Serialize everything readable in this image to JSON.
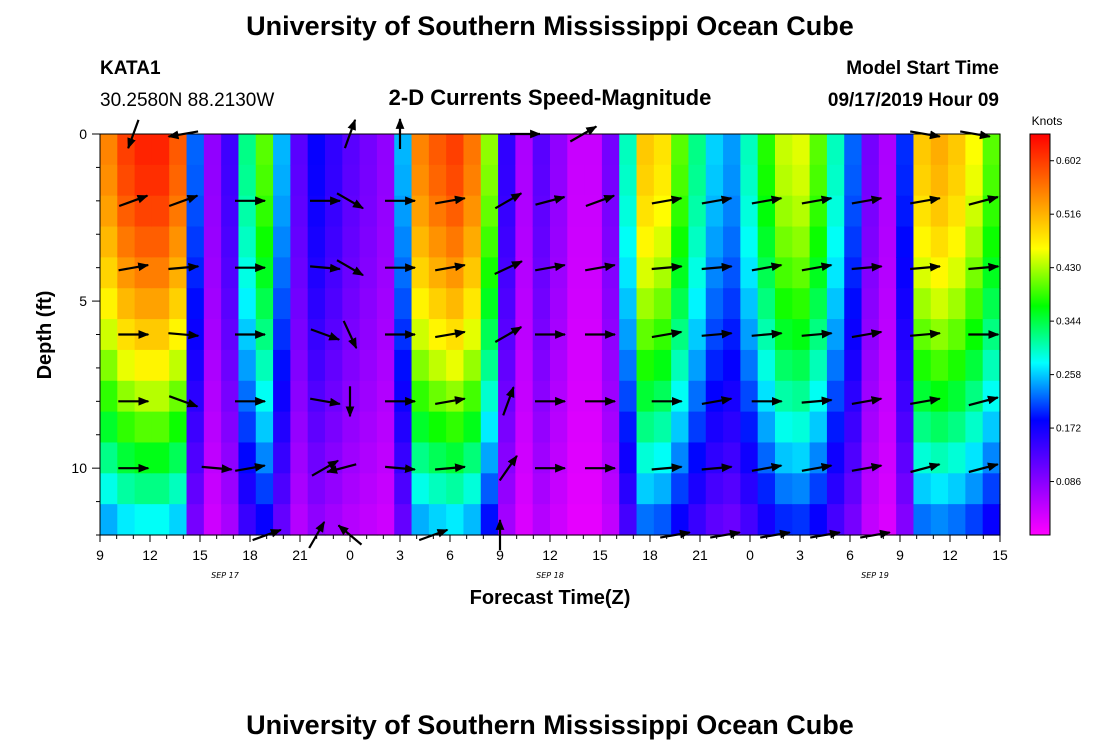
{
  "header": {
    "title": "University of Southern Mississippi Ocean Cube",
    "station": "KATA1",
    "coords": "30.2580N 88.2130W",
    "subtitle": "2-D Currents Speed-Magnitude",
    "model_start_label": "Model Start Time",
    "model_start_value": "09/17/2019 Hour 09"
  },
  "footer": {
    "title": "University of Southern Mississippi Ocean Cube"
  },
  "chart_data": {
    "type": "heatmap",
    "title": "2-D Currents Speed-Magnitude",
    "xlabel": "Forecast Time(Z)",
    "ylabel": "Depth (ft)",
    "x_range_hours": [
      0,
      54
    ],
    "x_ticks": [
      {
        "h": 0,
        "label": "9"
      },
      {
        "h": 3,
        "label": "12"
      },
      {
        "h": 6,
        "label": "15"
      },
      {
        "h": 9,
        "label": "18"
      },
      {
        "h": 12,
        "label": "21"
      },
      {
        "h": 15,
        "label": "0"
      },
      {
        "h": 18,
        "label": "3"
      },
      {
        "h": 21,
        "label": "6"
      },
      {
        "h": 24,
        "label": "9"
      },
      {
        "h": 27,
        "label": "12"
      },
      {
        "h": 30,
        "label": "15"
      },
      {
        "h": 33,
        "label": "18"
      },
      {
        "h": 36,
        "label": "21"
      },
      {
        "h": 39,
        "label": "0"
      },
      {
        "h": 42,
        "label": "3"
      },
      {
        "h": 45,
        "label": "6"
      },
      {
        "h": 48,
        "label": "9"
      },
      {
        "h": 51,
        "label": "12"
      },
      {
        "h": 54,
        "label": "15"
      }
    ],
    "date_labels": [
      {
        "h": 7.5,
        "label": "SEP 17"
      },
      {
        "h": 27,
        "label": "SEP 18"
      },
      {
        "h": 46.5,
        "label": "SEP 19"
      }
    ],
    "y_range_ft": [
      0,
      12
    ],
    "y_ticks": [
      0,
      5,
      10
    ],
    "colorbar": {
      "unit": "Knots",
      "range": [
        0.0,
        0.645
      ],
      "labels": [
        "0.602",
        "0.516",
        "0.430",
        "0.344",
        "0.258",
        "0.172",
        "0.086"
      ],
      "label_values": [
        0.602,
        0.516,
        0.43,
        0.344,
        0.258,
        0.172,
        0.086
      ],
      "colors": [
        "#ff00ff",
        "#8000ff",
        "#0000ff",
        "#00ffff",
        "#00ff00",
        "#ffff00",
        "#ff8000",
        "#ff0000"
      ]
    },
    "depths_ft": [
      0,
      1,
      2,
      3,
      4,
      5,
      6,
      7,
      8,
      9,
      10,
      11,
      12
    ],
    "column_peak_speed": [
      0.55,
      0.6,
      0.62,
      0.62,
      0.58,
      0.22,
      0.08,
      0.14,
      0.32,
      0.4,
      0.25,
      0.12,
      0.18,
      0.15,
      0.12,
      0.1,
      0.08,
      0.25,
      0.55,
      0.58,
      0.6,
      0.56,
      0.42,
      0.15,
      0.06,
      0.12,
      0.08,
      0.04,
      0.04,
      0.1,
      0.3,
      0.5,
      0.48,
      0.4,
      0.32,
      0.26,
      0.24,
      0.3,
      0.38,
      0.44,
      0.45,
      0.4,
      0.3,
      0.22,
      0.1,
      0.06,
      0.2,
      0.5,
      0.52,
      0.5,
      0.46,
      0.4
    ],
    "vectors": [
      {
        "h": 2,
        "d": 0,
        "dir": 200
      },
      {
        "h": 5,
        "d": 0,
        "dir": 260
      },
      {
        "h": 15,
        "d": 0,
        "dir": 20
      },
      {
        "h": 18,
        "d": 0,
        "dir": 0
      },
      {
        "h": 25.5,
        "d": 0,
        "dir": 90
      },
      {
        "h": 29,
        "d": 0,
        "dir": 60
      },
      {
        "h": 49.5,
        "d": 0,
        "dir": 100
      },
      {
        "h": 52.5,
        "d": 0,
        "dir": 100
      },
      {
        "h": 2,
        "d": 2,
        "dir": 70
      },
      {
        "h": 5,
        "d": 2,
        "dir": 70
      },
      {
        "h": 9,
        "d": 2,
        "dir": 90
      },
      {
        "h": 13.5,
        "d": 2,
        "dir": 90
      },
      {
        "h": 15,
        "d": 2,
        "dir": 120
      },
      {
        "h": 18,
        "d": 2,
        "dir": 90
      },
      {
        "h": 21,
        "d": 2,
        "dir": 80
      },
      {
        "h": 24.5,
        "d": 2,
        "dir": 60
      },
      {
        "h": 27,
        "d": 2,
        "dir": 75
      },
      {
        "h": 30,
        "d": 2,
        "dir": 70
      },
      {
        "h": 34,
        "d": 2,
        "dir": 80
      },
      {
        "h": 37,
        "d": 2,
        "dir": 80
      },
      {
        "h": 40,
        "d": 2,
        "dir": 80
      },
      {
        "h": 43,
        "d": 2,
        "dir": 80
      },
      {
        "h": 46,
        "d": 2,
        "dir": 80
      },
      {
        "h": 49.5,
        "d": 2,
        "dir": 80
      },
      {
        "h": 53,
        "d": 2,
        "dir": 75
      },
      {
        "h": 2,
        "d": 4,
        "dir": 80
      },
      {
        "h": 5,
        "d": 4,
        "dir": 85
      },
      {
        "h": 9,
        "d": 4,
        "dir": 90
      },
      {
        "h": 13.5,
        "d": 4,
        "dir": 95
      },
      {
        "h": 15,
        "d": 4,
        "dir": 120
      },
      {
        "h": 18,
        "d": 4,
        "dir": 90
      },
      {
        "h": 21,
        "d": 4,
        "dir": 80
      },
      {
        "h": 24.5,
        "d": 4,
        "dir": 65
      },
      {
        "h": 27,
        "d": 4,
        "dir": 80
      },
      {
        "h": 30,
        "d": 4,
        "dir": 80
      },
      {
        "h": 34,
        "d": 4,
        "dir": 85
      },
      {
        "h": 37,
        "d": 4,
        "dir": 85
      },
      {
        "h": 40,
        "d": 4,
        "dir": 80
      },
      {
        "h": 43,
        "d": 4,
        "dir": 80
      },
      {
        "h": 46,
        "d": 4,
        "dir": 85
      },
      {
        "h": 49.5,
        "d": 4,
        "dir": 85
      },
      {
        "h": 53,
        "d": 4,
        "dir": 85
      },
      {
        "h": 2,
        "d": 6,
        "dir": 90
      },
      {
        "h": 5,
        "d": 6,
        "dir": 95
      },
      {
        "h": 9,
        "d": 6,
        "dir": 90
      },
      {
        "h": 13.5,
        "d": 6,
        "dir": 110
      },
      {
        "h": 15,
        "d": 6,
        "dir": 155
      },
      {
        "h": 18,
        "d": 6,
        "dir": 90
      },
      {
        "h": 21,
        "d": 6,
        "dir": 80
      },
      {
        "h": 24.5,
        "d": 6,
        "dir": 60
      },
      {
        "h": 27,
        "d": 6,
        "dir": 90
      },
      {
        "h": 30,
        "d": 6,
        "dir": 90
      },
      {
        "h": 34,
        "d": 6,
        "dir": 80
      },
      {
        "h": 37,
        "d": 6,
        "dir": 85
      },
      {
        "h": 40,
        "d": 6,
        "dir": 85
      },
      {
        "h": 43,
        "d": 6,
        "dir": 85
      },
      {
        "h": 46,
        "d": 6,
        "dir": 80
      },
      {
        "h": 49.5,
        "d": 6,
        "dir": 85
      },
      {
        "h": 53,
        "d": 6,
        "dir": 90
      },
      {
        "h": 2,
        "d": 8,
        "dir": 90
      },
      {
        "h": 5,
        "d": 8,
        "dir": 110
      },
      {
        "h": 9,
        "d": 8,
        "dir": 90
      },
      {
        "h": 13.5,
        "d": 8,
        "dir": 100
      },
      {
        "h": 15,
        "d": 8,
        "dir": 180
      },
      {
        "h": 18,
        "d": 8,
        "dir": 90
      },
      {
        "h": 21,
        "d": 8,
        "dir": 80
      },
      {
        "h": 24.5,
        "d": 8,
        "dir": 20
      },
      {
        "h": 27,
        "d": 8,
        "dir": 90
      },
      {
        "h": 30,
        "d": 8,
        "dir": 90
      },
      {
        "h": 34,
        "d": 8,
        "dir": 90
      },
      {
        "h": 37,
        "d": 8,
        "dir": 80
      },
      {
        "h": 40,
        "d": 8,
        "dir": 90
      },
      {
        "h": 43,
        "d": 8,
        "dir": 85
      },
      {
        "h": 46,
        "d": 8,
        "dir": 80
      },
      {
        "h": 49.5,
        "d": 8,
        "dir": 80
      },
      {
        "h": 53,
        "d": 8,
        "dir": 75
      },
      {
        "h": 2,
        "d": 10,
        "dir": 90
      },
      {
        "h": 7,
        "d": 10,
        "dir": 95
      },
      {
        "h": 9,
        "d": 10,
        "dir": 80
      },
      {
        "h": 13.5,
        "d": 10,
        "dir": 60
      },
      {
        "h": 14.5,
        "d": 10,
        "dir": 255
      },
      {
        "h": 18,
        "d": 10,
        "dir": 95
      },
      {
        "h": 21,
        "d": 10,
        "dir": 85
      },
      {
        "h": 24.5,
        "d": 10,
        "dir": 35
      },
      {
        "h": 27,
        "d": 10,
        "dir": 90
      },
      {
        "h": 30,
        "d": 10,
        "dir": 90
      },
      {
        "h": 34,
        "d": 10,
        "dir": 85
      },
      {
        "h": 37,
        "d": 10,
        "dir": 85
      },
      {
        "h": 40,
        "d": 10,
        "dir": 80
      },
      {
        "h": 43,
        "d": 10,
        "dir": 80
      },
      {
        "h": 46,
        "d": 10,
        "dir": 80
      },
      {
        "h": 49.5,
        "d": 10,
        "dir": 75
      },
      {
        "h": 53,
        "d": 10,
        "dir": 75
      },
      {
        "h": 10,
        "d": 12,
        "dir": 70
      },
      {
        "h": 13,
        "d": 12,
        "dir": 30
      },
      {
        "h": 15,
        "d": 12,
        "dir": 310
      },
      {
        "h": 20,
        "d": 12,
        "dir": 70
      },
      {
        "h": 24,
        "d": 12,
        "dir": 0
      },
      {
        "h": 34.5,
        "d": 12,
        "dir": 80
      },
      {
        "h": 37.5,
        "d": 12,
        "dir": 80
      },
      {
        "h": 40.5,
        "d": 12,
        "dir": 80
      },
      {
        "h": 43.5,
        "d": 12,
        "dir": 80
      },
      {
        "h": 46.5,
        "d": 12,
        "dir": 80
      }
    ]
  }
}
